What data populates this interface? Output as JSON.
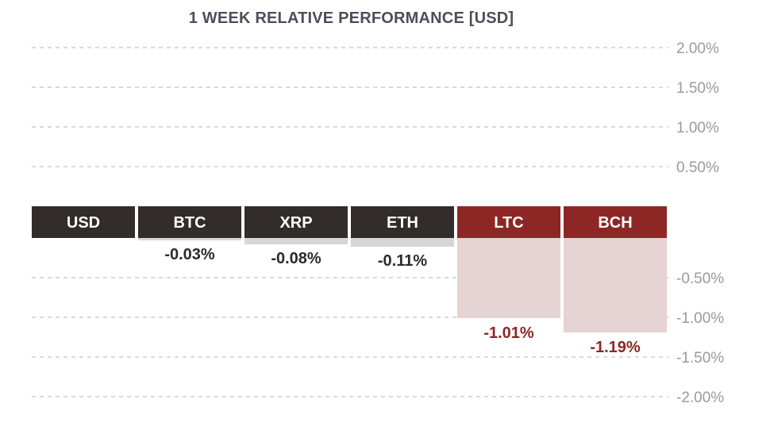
{
  "chart_data": {
    "type": "bar",
    "title": "1 WEEK RELATIVE PERFORMANCE  [USD]",
    "categories": [
      "USD",
      "BTC",
      "XRP",
      "ETH",
      "LTC",
      "BCH"
    ],
    "values": [
      null,
      -0.03,
      -0.08,
      -0.11,
      -1.01,
      -1.19
    ],
    "value_labels": [
      "",
      "-0.03%",
      "-0.08%",
      "-0.11%",
      "-1.01%",
      "-1.19%"
    ],
    "yticks_positive": [
      {
        "value": 2.0,
        "label": "2.00%"
      },
      {
        "value": 1.5,
        "label": "1.50%"
      },
      {
        "value": 1.0,
        "label": "1.00%"
      },
      {
        "value": 0.5,
        "label": "0.50%"
      }
    ],
    "yticks_negative": [
      {
        "value": -0.5,
        "label": "-0.50%"
      },
      {
        "value": -1.0,
        "label": "-1.00%"
      },
      {
        "value": -1.5,
        "label": "-1.50%"
      },
      {
        "value": -2.0,
        "label": "-2.00%"
      }
    ],
    "ylim": [
      -2.0,
      2.0
    ],
    "grid": true,
    "colors": {
      "header_neutral": "#332c2c",
      "header_negative": "#8c2726",
      "bar_neutral": "#d6d6d6",
      "bar_negative": "#e6d3d3",
      "label_neutral": "#2b2b2b",
      "label_negative": "#8c2726",
      "grid": "#c4c4c4",
      "tick": "#9a9a9a",
      "title": "#4a4f5a"
    },
    "negative_emphasis": [
      "LTC",
      "BCH"
    ]
  }
}
